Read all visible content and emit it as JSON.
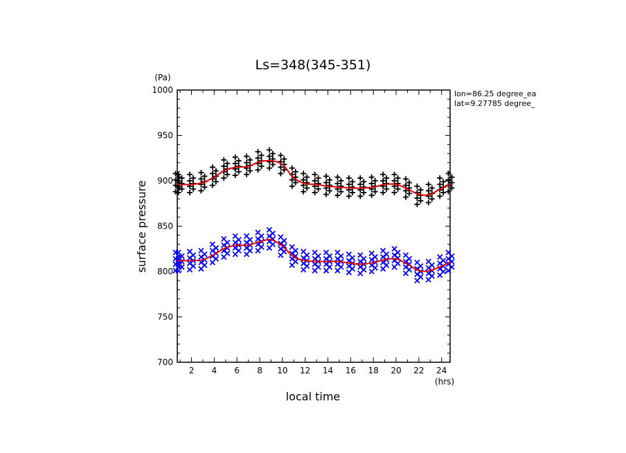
{
  "chart_data": {
    "type": "scatter",
    "title": "Ls=348(345-351)",
    "xlabel": "local time",
    "ylabel": "surface pressure",
    "x_unit": "(hrs)",
    "y_unit": "(Pa)",
    "xlim": [
      0.75,
      24.75
    ],
    "ylim": [
      700,
      1000
    ],
    "x_ticks": [
      "2",
      "4",
      "6",
      "8",
      "10",
      "12",
      "14",
      "16",
      "18",
      "20",
      "22",
      "24"
    ],
    "y_ticks": [
      "700",
      "750",
      "800",
      "850",
      "900",
      "950",
      "1000"
    ],
    "annotations": [
      "lon=86.25 degree_ea",
      "lat=9.27785 degree_"
    ],
    "grid": false,
    "colors": {
      "series1": "#000000",
      "series2": "#0000ff",
      "fit": "#dd0000"
    },
    "spread": [
      -10,
      -6,
      -3,
      0,
      3,
      6,
      10
    ],
    "series": [
      {
        "marker": "plus",
        "x": [
          0.75,
          1,
          2,
          3,
          4,
          5,
          6,
          7,
          8,
          9,
          10,
          11,
          12,
          13,
          14,
          15,
          16,
          17,
          18,
          19,
          20,
          21,
          22,
          23,
          24,
          24.75
        ],
        "y": [
          898,
          897,
          897,
          899,
          905,
          913,
          916,
          917,
          922,
          924,
          918,
          904,
          898,
          897,
          895,
          894,
          893,
          893,
          894,
          897,
          897,
          892,
          884,
          886,
          893,
          898
        ]
      },
      {
        "marker": "cross",
        "x": [
          0.75,
          1,
          2,
          3,
          4,
          5,
          6,
          7,
          8,
          9,
          10,
          11,
          12,
          13,
          14,
          15,
          16,
          17,
          18,
          19,
          20,
          21,
          22,
          23,
          24,
          24.75
        ],
        "y": [
          811,
          811,
          812,
          813,
          820,
          826,
          829,
          829,
          833,
          836,
          828,
          817,
          812,
          811,
          811,
          811,
          809,
          808,
          810,
          813,
          815,
          808,
          800,
          801,
          806,
          811
        ]
      }
    ],
    "fit_lines": [
      {
        "x": [
          0.75,
          1,
          2,
          3,
          4,
          5,
          6,
          7,
          8,
          9,
          10,
          11,
          12,
          13,
          14,
          15,
          16,
          17,
          18,
          19,
          20,
          21,
          22,
          23,
          24,
          24.75
        ],
        "y": [
          896,
          896,
          896,
          898,
          904,
          912,
          915,
          916,
          921,
          922,
          918,
          903,
          897,
          896,
          894,
          893,
          892,
          892,
          893,
          896,
          896,
          891,
          885,
          885,
          892,
          896
        ]
      },
      {
        "x": [
          0.75,
          1,
          2,
          3,
          4,
          5,
          6,
          7,
          8,
          9,
          10,
          11,
          12,
          13,
          14,
          15,
          16,
          17,
          18,
          19,
          20,
          21,
          22,
          23,
          24,
          24.75
        ],
        "y": [
          812,
          812,
          812,
          813,
          819,
          826,
          829,
          829,
          833,
          835,
          828,
          816,
          812,
          811,
          811,
          811,
          809,
          808,
          810,
          813,
          814,
          808,
          801,
          801,
          806,
          810
        ]
      }
    ]
  }
}
